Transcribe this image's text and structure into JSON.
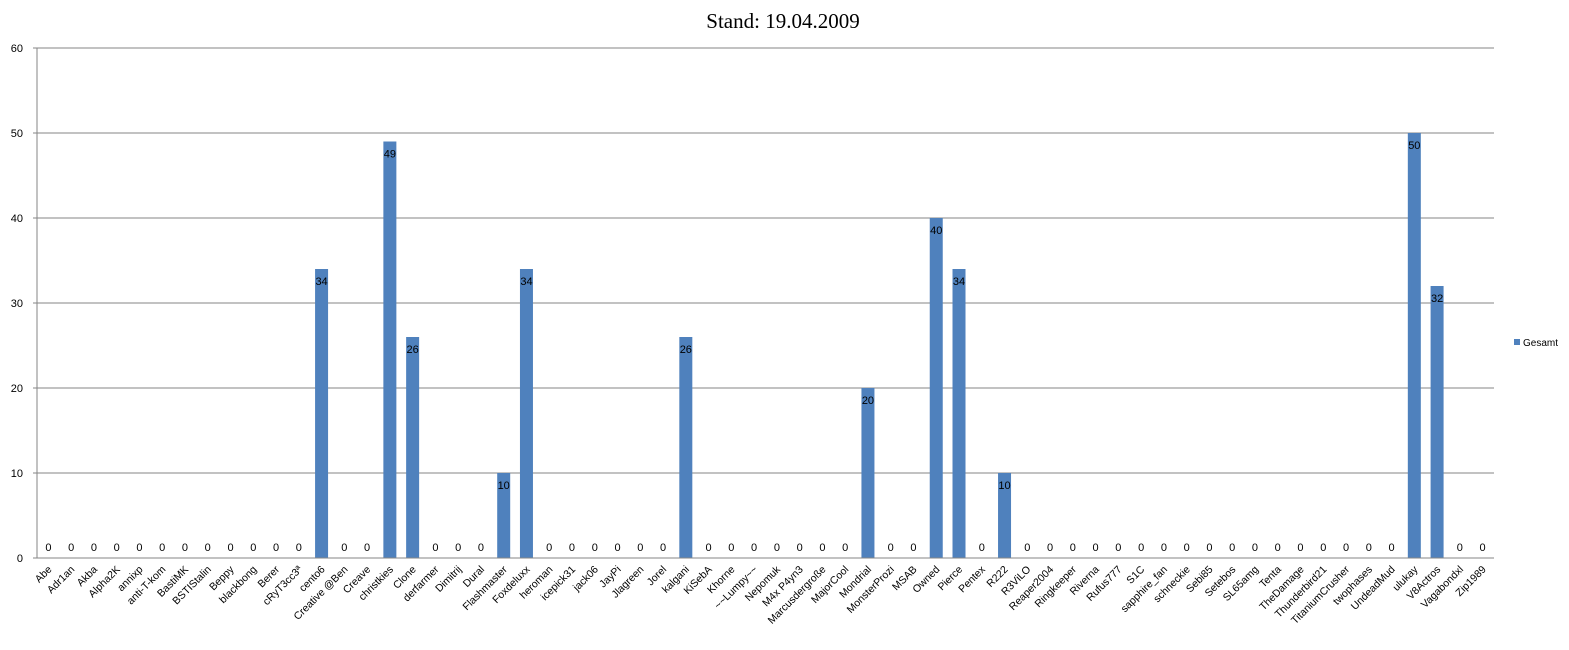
{
  "chart_data": {
    "type": "bar",
    "title": "Stand: 19.04.2009",
    "xlabel": "",
    "ylabel": "",
    "ylim": [
      0,
      60
    ],
    "yticks": [
      "0",
      "10",
      "20",
      "30",
      "40",
      "50",
      "60"
    ],
    "grid": true,
    "legend_position": "right",
    "colors": {
      "bar": "#4F81BD",
      "grid": "#868686",
      "axis": "#868686"
    },
    "categories": [
      "Abe",
      "Adr1an",
      "Akba",
      "Alpha2K",
      "annixp",
      "anti-T-kom",
      "BastiMK",
      "BSTIStalin",
      "Beppy",
      "blackbong",
      "Berer",
      "cRyT3cc3ª",
      "cento6",
      "Creative @Ben",
      "Creave",
      "christkies",
      "Clone",
      "derfarmer",
      "Dimitrij",
      "Dural",
      "Flashmaster",
      "Foxdeluxx",
      "heroman",
      "icepick31",
      "jack06",
      "JayPi",
      "Jlagreen",
      "Jorel",
      "kalgani",
      "KiSebA",
      "Khorne",
      "~~Lumpy~~",
      "Nepomuk",
      "M4x P4yn3",
      "Marcusdergroße",
      "MajorCool",
      "Mondrial",
      "MonsterProzi",
      "MSAB",
      "Owned",
      "Pierce",
      "Pentex",
      "R222",
      "R3ViLO",
      "Reaper2004",
      "Ringkeeper",
      "Riverna",
      "Rufus777",
      "S1C",
      "sapphire_fan",
      "schneckie",
      "Sebi85",
      "Setebos",
      "SL65amg",
      "Tenta",
      "TheDamage",
      "Thunderbird21",
      "TitaniumCrusher",
      "twophases",
      "UndeadMud",
      "ulukay",
      "V8Actros",
      "Vagabondxl",
      "Zip1989"
    ],
    "series": [
      {
        "name": "Gesamt",
        "values": [
          0,
          0,
          0,
          0,
          0,
          0,
          0,
          0,
          0,
          0,
          0,
          0,
          34,
          0,
          0,
          49,
          26,
          0,
          0,
          0,
          10,
          34,
          0,
          0,
          0,
          0,
          0,
          0,
          26,
          0,
          0,
          0,
          0,
          0,
          0,
          0,
          20,
          0,
          0,
          40,
          34,
          0,
          10,
          0,
          0,
          0,
          0,
          0,
          0,
          0,
          0,
          0,
          0,
          0,
          0,
          0,
          0,
          0,
          0,
          0,
          50,
          32,
          0,
          0
        ],
        "data_labels": [
          "0",
          "0",
          "0",
          "0",
          "0",
          "0",
          "0",
          "0",
          "0",
          "0",
          "0",
          "0",
          "34",
          "0",
          "0",
          "49",
          "26",
          "0",
          "0",
          "0",
          "10",
          "34",
          "0",
          "0",
          "0",
          "0",
          "0",
          "0",
          "26",
          "0",
          "0",
          "0",
          "0",
          "0",
          "0",
          "0",
          "20",
          "0",
          "0",
          "40",
          "34",
          "0",
          "10",
          "0",
          "0",
          "0",
          "0",
          "0",
          "0",
          "0",
          "0",
          "0",
          "0",
          "0",
          "0",
          "0",
          "0",
          "0",
          "0",
          "0",
          "50",
          "32",
          "0",
          "0"
        ]
      }
    ]
  }
}
